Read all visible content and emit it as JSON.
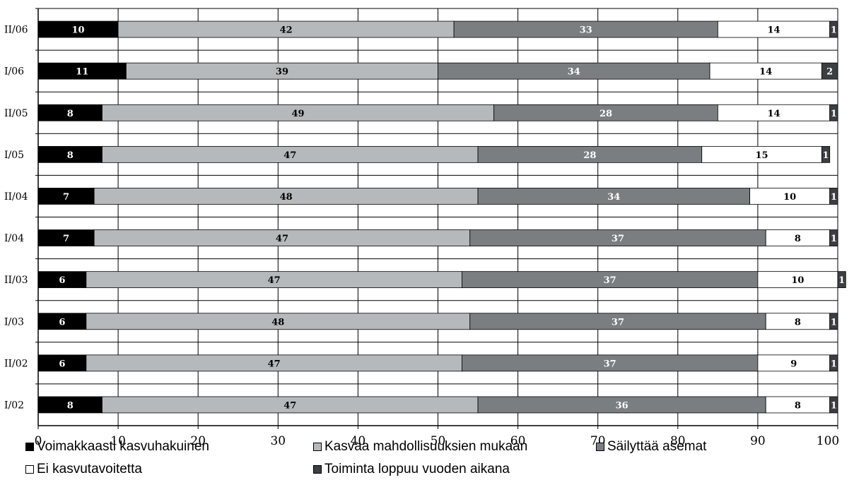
{
  "chart_data": {
    "type": "bar",
    "orientation": "horizontal",
    "stacked": true,
    "categories": [
      "II/06",
      "I/06",
      "II/05",
      "I/05",
      "II/04",
      "I/04",
      "II/03",
      "I/03",
      "II/02",
      "I/02"
    ],
    "category_labels": [
      "II/06",
      "I/06",
      "II/05",
      "I/05",
      "II/04",
      "I/04",
      "II/03",
      "I/03",
      "II/02",
      "I/02"
    ],
    "series": [
      {
        "name": "Voimakkaasti kasvuhakuinen",
        "color": "#000000",
        "label_color": "#ffffff",
        "values": [
          10,
          11,
          8,
          8,
          7,
          7,
          6,
          6,
          6,
          8
        ]
      },
      {
        "name": "Kasvaa mahdollisuuksien mukaan",
        "color": "#b6b9bb",
        "label_color": "#000000",
        "values": [
          42,
          39,
          49,
          47,
          48,
          47,
          47,
          48,
          47,
          47
        ]
      },
      {
        "name": "Säilyttää asemat",
        "color": "#7b7e81",
        "label_color": "#ffffff",
        "values": [
          33,
          34,
          28,
          28,
          34,
          37,
          37,
          37,
          37,
          36
        ]
      },
      {
        "name": "Ei kasvutavoitetta",
        "color": "#ffffff",
        "label_color": "#000000",
        "values": [
          14,
          14,
          14,
          15,
          10,
          8,
          10,
          8,
          9,
          8
        ]
      },
      {
        "name": "Toiminta loppuu vuoden aikana",
        "color": "#3c3e41",
        "label_color": "#ffffff",
        "values": [
          1,
          2,
          1,
          1,
          1,
          1,
          1,
          1,
          1,
          1
        ]
      }
    ],
    "x_ticks": [
      "0",
      "10",
      "20",
      "30",
      "40",
      "50",
      "60",
      "70",
      "80",
      "90",
      "100"
    ],
    "xlim": [
      0,
      100
    ],
    "grid": true,
    "legend_position": "bottom",
    "title": "",
    "xlabel": "",
    "ylabel": ""
  }
}
